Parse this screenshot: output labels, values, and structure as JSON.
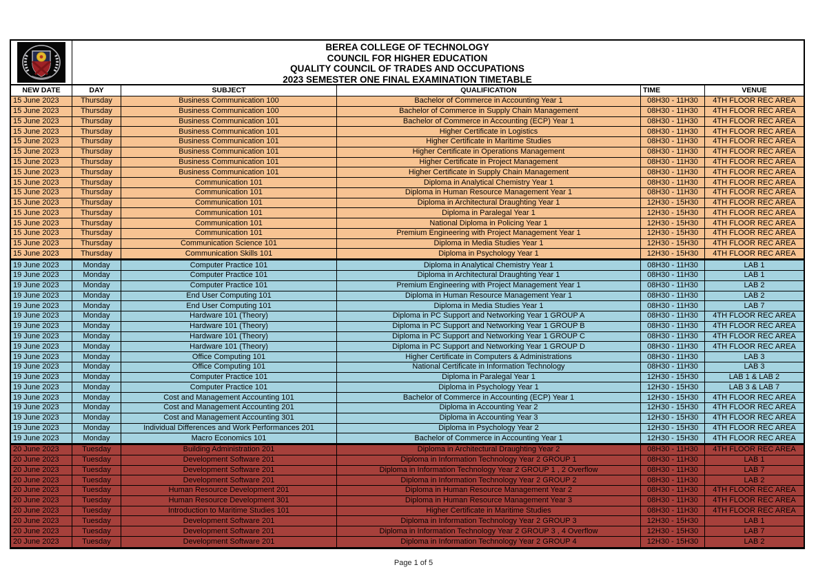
{
  "header": {
    "title_lines": [
      "BEREA COLLEGE OF TECHNOLOGY",
      "COUNCIL FOR HIGHER EDUCATION",
      "QUALITY COUNCIL OF TRADES AND OCCUPATIONS",
      "2023 SEMESTER ONE FINAL EXAMINATION TIMETABLE"
    ],
    "logo_icon": "college-crest"
  },
  "table": {
    "columns": [
      "NEW DATE",
      "DAY",
      "SUBJECT",
      "QUALIFICATION",
      "TIME",
      "VENUE"
    ],
    "sections": [
      {
        "date": "15 June 2023",
        "day": "Thursday",
        "color": "#f7c392",
        "rows": [
          [
            "15 June 2023",
            "Thursday",
            "Business Communication 100",
            "Bachelor of Commerce in Accounting Year 1",
            "08H30 - 11H30",
            "4TH FLOOR REC AREA"
          ],
          [
            "15 June 2023",
            "Thursday",
            "Business Communication 100",
            "Bachelor of Commerce in Supply Chain Management",
            "08H30 - 11H30",
            "4TH FLOOR REC AREA"
          ],
          [
            "15 June 2023",
            "Thursday",
            "Business Communication 101",
            "Bachelor of Commerce in Accounting (ECP) Year 1",
            "08H30 - 11H30",
            "4TH FLOOR REC AREA"
          ],
          [
            "15 June 2023",
            "Thursday",
            "Business Communication 101",
            "Higher Certificate in Logistics",
            "08H30 - 11H30",
            "4TH FLOOR REC AREA"
          ],
          [
            "15 June 2023",
            "Thursday",
            "Business Communication 101",
            "Higher Certificate in Maritime Studies",
            "08H30 - 11H30",
            "4TH FLOOR REC AREA"
          ],
          [
            "15 June 2023",
            "Thursday",
            "Business Communication 101",
            "Higher Certificate in Operations Management",
            "08H30 - 11H30",
            "4TH FLOOR REC AREA"
          ],
          [
            "15 June 2023",
            "Thursday",
            "Business Communication 101",
            "Higher Certificate in Project Management",
            "08H30 - 11H30",
            "4TH FLOOR REC AREA"
          ],
          [
            "15 June 2023",
            "Thursday",
            "Business Communication 101",
            "Higher Certificate in Supply Chain Management",
            "08H30 - 11H30",
            "4TH FLOOR REC AREA"
          ],
          [
            "15 June 2023",
            "Thursday",
            "Communication 101",
            "Diploma in Analytical Chemistry Year 1",
            "08H30 - 11H30",
            "4TH FLOOR REC AREA"
          ],
          [
            "15 June 2023",
            "Thursday",
            "Communication 101",
            "Diploma in Human Resource Management Year 1",
            "08H30 - 11H30",
            "4TH FLOOR REC AREA"
          ],
          [
            "15 June 2023",
            "Thursday",
            "Communication 101",
            "Diploma in Architectural Draughting Year 1",
            "12H30 - 15H30",
            "4TH FLOOR REC AREA"
          ],
          [
            "15 June 2023",
            "Thursday",
            "Communication 101",
            "Diploma in Paralegal Year 1",
            "12H30 - 15H30",
            "4TH FLOOR REC AREA"
          ],
          [
            "15 June 2023",
            "Thursday",
            "Communication 101",
            "National Diploma in Policing Year 1",
            "12H30 - 15H30",
            "4TH FLOOR REC AREA"
          ],
          [
            "15 June 2023",
            "Thursday",
            "Communication 101",
            "Premium Engineering with Project Management Year 1",
            "12H30 - 15H30",
            "4TH FLOOR REC AREA"
          ],
          [
            "15 June 2023",
            "Thursday",
            "Communication Science 101",
            "Diploma in Media Studies Year 1",
            "12H30 - 15H30",
            "4TH FLOOR REC AREA"
          ],
          [
            "15 June 2023",
            "Thursday",
            "Communication Skills 101",
            "Diploma in Psychology Year 1",
            "12H30 - 15H30",
            "4TH FLOOR REC AREA"
          ]
        ]
      },
      {
        "date": "19 June 2023",
        "day": "Monday",
        "color": "#a5d3e0",
        "rows": [
          [
            "19 June 2023",
            "Monday",
            "Computer Practice 101",
            "Diploma in Analytical Chemistry Year 1",
            "08H30 - 11H30",
            "LAB 1"
          ],
          [
            "19 June 2023",
            "Monday",
            "Computer Practice 101",
            "Diploma in Architectural Draughting Year 1",
            "08H30 - 11H30",
            "LAB 1"
          ],
          [
            "19 June 2023",
            "Monday",
            "Computer Practice 101",
            "Premium Engineering with Project Management Year 1",
            "08H30 - 11H30",
            "LAB 2"
          ],
          [
            "19 June 2023",
            "Monday",
            "End User Computing 101",
            "Diploma in Human Resource Management Year 1",
            "08H30 - 11H30",
            "LAB 2"
          ],
          [
            "19 June 2023",
            "Monday",
            "End User Computing 101",
            "Diploma in Media Studies Year 1",
            "08H30 - 11H30",
            "LAB 7"
          ],
          [
            "19 June 2023",
            "Monday",
            "Hardware 101 (Theory)",
            "Diploma in PC Support and Networking Year 1 GROUP A",
            "08H30 - 11H30",
            "4TH FLOOR REC AREA"
          ],
          [
            "19 June 2023",
            "Monday",
            "Hardware 101 (Theory)",
            "Diploma in PC Support and Networking Year 1 GROUP B",
            "08H30 - 11H30",
            "4TH FLOOR REC AREA"
          ],
          [
            "19 June 2023",
            "Monday",
            "Hardware 101 (Theory)",
            "Diploma in PC Support and Networking Year 1 GROUP C",
            "08H30 - 11H30",
            "4TH FLOOR REC AREA"
          ],
          [
            "19 June 2023",
            "Monday",
            "Hardware 101 (Theory)",
            "Diploma in PC Support and Networking Year 1 GROUP D",
            "08H30 - 11H30",
            "4TH FLOOR REC AREA"
          ],
          [
            "19 June 2023",
            "Monday",
            "Office Computing 101",
            "Higher Certificate in Computers & Administrations",
            "08H30 - 11H30",
            "LAB 3"
          ],
          [
            "19 June 2023",
            "Monday",
            "Office Computing 101",
            "National Certificate in Information Technology",
            "08H30 - 11H30",
            "LAB 3"
          ],
          [
            "19 June 2023",
            "Monday",
            "Computer Practice 101",
            "Diploma in Paralegal Year 1",
            "12H30 - 15H30",
            "LAB 1 & LAB 2"
          ],
          [
            "19 June 2023",
            "Monday",
            "Computer Practice 101",
            "Diploma in Psychology Year 1",
            "12H30 - 15H30",
            "LAB 3 & LAB 7"
          ],
          [
            "19 June 2023",
            "Monday",
            "Cost and Management Accounting 101",
            "Bachelor of Commerce in Accounting (ECP) Year 1",
            "12H30 - 15H30",
            "4TH FLOOR REC AREA"
          ],
          [
            "19 June 2023",
            "Monday",
            "Cost and Management Accounting 201",
            "Diploma in Accounting Year 2",
            "12H30 - 15H30",
            "4TH FLOOR REC AREA"
          ],
          [
            "19 June 2023",
            "Monday",
            "Cost and Management Accounting 301",
            "Diploma in Accounting Year 3",
            "12H30 - 15H30",
            "4TH FLOOR REC AREA"
          ],
          [
            "19 June 2023",
            "Monday",
            "Individual Differences and Work Performances 201",
            "Diploma in Psychology Year 2",
            "12H30 - 15H30",
            "4TH FLOOR REC AREA"
          ],
          [
            "19 June 2023",
            "Monday",
            "Macro Economics 101",
            "Bachelor of Commerce in Accounting Year 1",
            "12H30 - 15H30",
            "4TH FLOOR REC AREA"
          ]
        ]
      },
      {
        "date": "20 June 2023",
        "day": "Tuesday",
        "color": "#a6403b",
        "rows": [
          [
            "20 June 2023",
            "Tuesday",
            "Building Administration 201",
            "Diploma in Architectural Draughting Year 2",
            "08H30 - 11H30",
            "4TH FLOOR REC AREA"
          ],
          [
            "20 June 2023",
            "Tuesday",
            "Development Software 201",
            "Diploma in Information Technology Year 2 GROUP 1",
            "08H30 - 11H30",
            "LAB 1"
          ],
          [
            "20 June 2023",
            "Tuesday",
            "Development Software 201",
            "Diploma in Information Technology Year 2 GROUP 1 , 2 Overflow",
            "08H30 - 11H30",
            "LAB 7"
          ],
          [
            "20 June 2023",
            "Tuesday",
            "Development Software 201",
            "Diploma in Information Technology Year 2 GROUP 2",
            "08H30 - 11H30",
            "LAB 2"
          ],
          [
            "20 June 2023",
            "Tuesday",
            "Human Resource Development 201",
            "Diploma in Human Resource Management Year 2",
            "08H30 - 11H30",
            "4TH FLOOR REC AREA"
          ],
          [
            "20 June 2023",
            "Tuesday",
            "Human Resource Development 301",
            "Diploma in Human Resource Management Year 3",
            "08H30 - 11H30",
            "4TH FLOOR REC AREA"
          ],
          [
            "20 June 2023",
            "Tuesday",
            "Introduction to Maritime Studies 101",
            "Higher Certificate in Maritime Studies",
            "08H30 - 11H30",
            "4TH FLOOR REC AREA"
          ],
          [
            "20 June 2023",
            "Tuesday",
            "Development Software 201",
            "Diploma in Information Technology Year 2 GROUP 3",
            "12H30 - 15H30",
            "LAB 1"
          ],
          [
            "20 June 2023",
            "Tuesday",
            "Development Software 201",
            "Diploma in Information Technology Year 2 GROUP 3 , 4 Overflow",
            "12H30 - 15H30",
            "LAB 7"
          ],
          [
            "20 June 2023",
            "Tuesday",
            "Development Software 201",
            "Diploma in Information Technology Year 2 GROUP 4",
            "12H30 - 15H30",
            "LAB 2"
          ]
        ]
      }
    ]
  },
  "footer": {
    "page_label": "Page 1 of 5"
  }
}
